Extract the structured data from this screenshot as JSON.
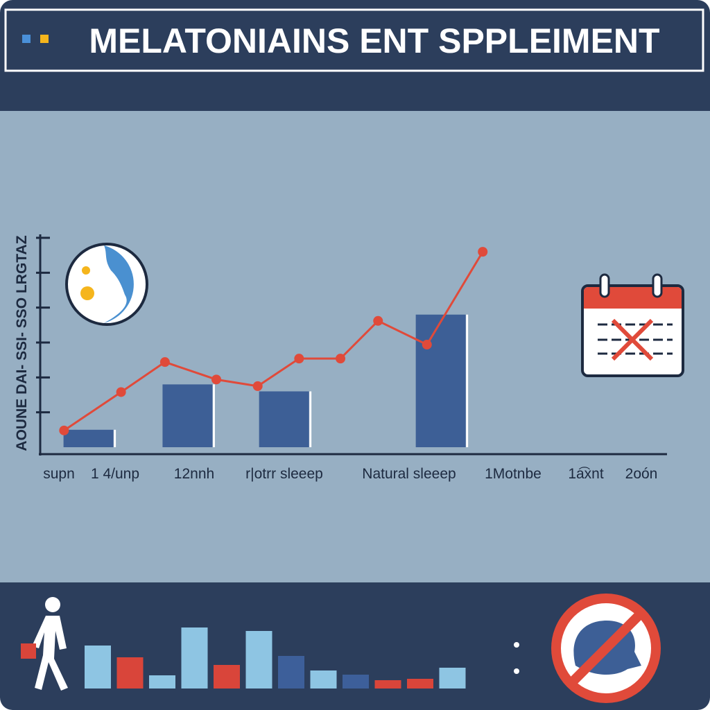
{
  "title": "MELATONIAINS ENT SPPLEIMENT",
  "chart_data": [
    {
      "type": "combo",
      "ylabel": "AOUNE DAI- SSI- SSO LRGTAZ",
      "categories": [
        "supn",
        "1 4/unp",
        "12nnh",
        "r|otrr sleeep",
        "Natural sleeep",
        "1Motnbe",
        "1a͡xnt",
        "2oón"
      ],
      "xlim": [
        0,
        10
      ],
      "ylim": [
        0,
        6
      ],
      "yticks": [
        1,
        2,
        3,
        4,
        5,
        6
      ],
      "series": [
        {
          "type": "bar",
          "color": "#3d5f96",
          "x": [
            0.77,
            2.35,
            3.89,
            6.39
          ],
          "values": [
            0.5,
            1.8,
            1.6,
            3.8
          ]
        },
        {
          "type": "line",
          "color": "#e04a3a",
          "x": [
            0.38,
            1.29,
            1.99,
            2.81,
            3.47,
            4.13,
            4.79,
            5.39,
            6.17,
            7.06
          ],
          "values": [
            0.48,
            1.58,
            2.44,
            1.94,
            1.75,
            2.54,
            2.54,
            3.62,
            2.94,
            5.6
          ]
        }
      ]
    },
    {
      "type": "bar",
      "values": [
        62,
        45,
        19,
        88,
        34,
        83,
        47,
        26,
        20,
        12,
        14,
        30
      ],
      "colors": [
        "#8ec5e3",
        "#d9453a",
        "#8ec5e3",
        "#8ec5e3",
        "#d9453a",
        "#8ec5e3",
        "#3d5f9a",
        "#8ec5e3",
        "#3d5f9a",
        "#d9453a",
        "#d9453a",
        "#8ec5e3"
      ]
    }
  ]
}
